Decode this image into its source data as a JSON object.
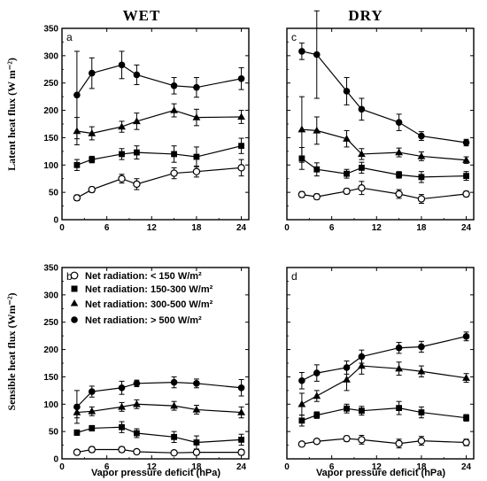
{
  "column_titles": [
    "WET",
    "DRY"
  ],
  "ylabel_top": "Latent heat flux (W m⁻²)",
  "ylabel_bottom": "Sensible heat flux (Wm⁻²)",
  "xlabel": "Vapor pressure deficit (hPa)",
  "legend": [
    {
      "label": "Net radiation: < 150 W/m²",
      "marker": "open-circle"
    },
    {
      "label": "Net radiation: 150-300 W/m²",
      "marker": "square"
    },
    {
      "label": "Net radiation: 300-500 W/m²",
      "marker": "triangle"
    },
    {
      "label": "Net radiation: > 500 W/m²",
      "marker": "circle"
    }
  ],
  "chart_data": [
    {
      "panel": "a",
      "type": "line",
      "x": [
        2,
        4,
        8,
        10,
        15,
        18,
        24
      ],
      "xlim": [
        0,
        25
      ],
      "ylim": [
        0,
        350
      ],
      "xticks": [
        0,
        6,
        12,
        18,
        24
      ],
      "yticks": [
        0,
        50,
        100,
        150,
        200,
        250,
        300,
        350
      ],
      "series": [
        {
          "marker": "open-circle",
          "values": [
            40,
            55,
            75,
            65,
            85,
            88,
            95
          ],
          "errors": [
            5,
            5,
            8,
            10,
            10,
            10,
            15
          ]
        },
        {
          "marker": "square",
          "values": [
            100,
            110,
            120,
            123,
            120,
            115,
            135
          ],
          "errors": [
            10,
            6,
            10,
            12,
            15,
            18,
            14
          ]
        },
        {
          "marker": "triangle",
          "values": [
            162,
            158,
            170,
            180,
            200,
            187,
            188
          ],
          "errors": [
            25,
            12,
            10,
            15,
            12,
            15,
            12
          ]
        },
        {
          "marker": "circle",
          "values": [
            228,
            268,
            283,
            265,
            245,
            242,
            258
          ],
          "errors": [
            80,
            28,
            25,
            18,
            15,
            18,
            20
          ]
        }
      ]
    },
    {
      "panel": "c",
      "type": "line",
      "x": [
        2,
        4,
        8,
        10,
        15,
        18,
        24
      ],
      "xlim": [
        0,
        25
      ],
      "ylim": [
        0,
        350
      ],
      "xticks": [
        0,
        6,
        12,
        18,
        24
      ],
      "yticks": [
        0,
        50,
        100,
        150,
        200,
        250,
        300,
        350
      ],
      "series": [
        {
          "marker": "open-circle",
          "values": [
            46,
            42,
            52,
            58,
            47,
            38,
            47
          ],
          "errors": [
            5,
            5,
            5,
            12,
            8,
            8,
            5
          ]
        },
        {
          "marker": "square",
          "values": [
            112,
            92,
            84,
            95,
            82,
            78,
            80
          ],
          "errors": [
            20,
            12,
            8,
            10,
            6,
            10,
            8
          ]
        },
        {
          "marker": "triangle",
          "values": [
            165,
            163,
            148,
            120,
            123,
            116,
            109
          ],
          "errors": [
            60,
            25,
            15,
            10,
            8,
            8,
            6
          ]
        },
        {
          "marker": "circle",
          "values": [
            308,
            302,
            235,
            202,
            178,
            153,
            141
          ],
          "errors": [
            15,
            80,
            25,
            20,
            15,
            8,
            6
          ]
        }
      ]
    },
    {
      "panel": "b",
      "type": "line",
      "x": [
        2,
        4,
        8,
        10,
        15,
        18,
        24
      ],
      "xlim": [
        0,
        25
      ],
      "ylim": [
        0,
        350
      ],
      "xticks": [
        0,
        6,
        12,
        18,
        24
      ],
      "yticks": [
        0,
        50,
        100,
        150,
        200,
        250,
        300,
        350
      ],
      "series": [
        {
          "marker": "open-circle",
          "values": [
            12,
            17,
            17,
            13,
            11,
            12,
            12
          ],
          "errors": [
            4,
            5,
            5,
            4,
            4,
            5,
            5
          ]
        },
        {
          "marker": "square",
          "values": [
            48,
            56,
            58,
            47,
            40,
            30,
            35
          ],
          "errors": [
            5,
            5,
            10,
            8,
            10,
            12,
            10
          ]
        },
        {
          "marker": "triangle",
          "values": [
            85,
            87,
            95,
            100,
            97,
            90,
            85
          ],
          "errors": [
            10,
            8,
            8,
            8,
            8,
            8,
            10
          ]
        },
        {
          "marker": "circle",
          "values": [
            95,
            123,
            130,
            138,
            140,
            138,
            130
          ],
          "errors": [
            30,
            10,
            12,
            6,
            10,
            8,
            15
          ]
        }
      ]
    },
    {
      "panel": "d",
      "type": "line",
      "x": [
        2,
        4,
        8,
        10,
        15,
        18,
        24
      ],
      "xlim": [
        0,
        25
      ],
      "ylim": [
        0,
        350
      ],
      "xticks": [
        0,
        6,
        12,
        18,
        24
      ],
      "yticks": [
        0,
        50,
        100,
        150,
        200,
        250,
        300,
        350
      ],
      "series": [
        {
          "marker": "open-circle",
          "values": [
            27,
            32,
            37,
            35,
            28,
            33,
            30
          ],
          "errors": [
            4,
            4,
            5,
            8,
            8,
            8,
            6
          ]
        },
        {
          "marker": "square",
          "values": [
            70,
            80,
            92,
            88,
            93,
            85,
            75
          ],
          "errors": [
            10,
            6,
            8,
            8,
            12,
            10,
            6
          ]
        },
        {
          "marker": "triangle",
          "values": [
            100,
            115,
            145,
            170,
            165,
            160,
            148
          ],
          "errors": [
            20,
            10,
            20,
            15,
            12,
            10,
            8
          ]
        },
        {
          "marker": "circle",
          "values": [
            143,
            157,
            167,
            187,
            203,
            205,
            224
          ],
          "errors": [
            15,
            15,
            12,
            12,
            10,
            10,
            8
          ]
        }
      ]
    }
  ]
}
